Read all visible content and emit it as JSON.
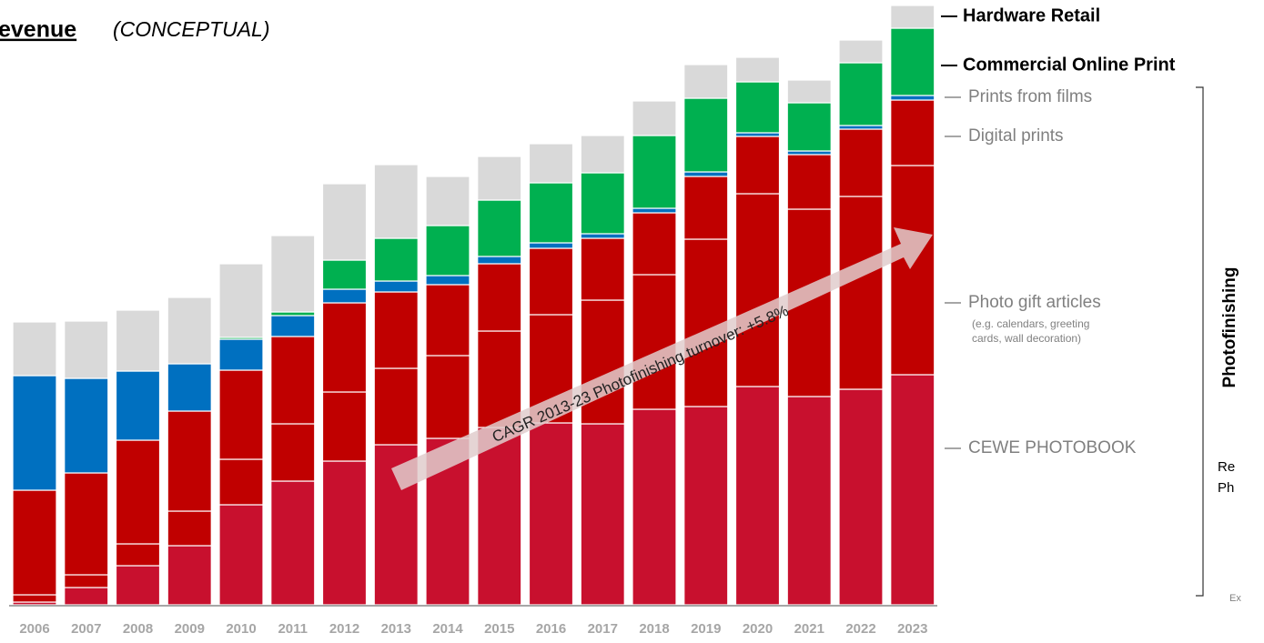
{
  "chart_data": {
    "type": "stacked_bar",
    "title": "evenue",
    "subtitle": "(CONCEPTUAL)",
    "categories": [
      "2006",
      "2007",
      "2008",
      "2009",
      "2010",
      "2011",
      "2012",
      "2013",
      "2014",
      "2015",
      "2016",
      "2017",
      "2018",
      "2019",
      "2020",
      "2021",
      "2022",
      "2023"
    ],
    "series": [
      {
        "name": "CEWE PHOTOBOOK",
        "color": "#c8102e",
        "values": [
          3,
          19,
          43,
          65,
          110,
          136,
          158,
          176,
          183,
          195,
          200,
          199,
          215,
          218,
          240,
          229,
          237,
          253
        ]
      },
      {
        "name": "Photo gift articles",
        "color": "#c00000",
        "values": [
          8,
          14,
          24,
          38,
          50,
          63,
          76,
          84,
          91,
          106,
          119,
          136,
          148,
          184,
          212,
          206,
          212,
          230
        ]
      },
      {
        "name": "Digital prints",
        "color": "#c00000",
        "values": [
          115,
          112,
          114,
          110,
          98,
          96,
          98,
          84,
          78,
          74,
          73,
          68,
          68,
          69,
          63,
          60,
          74,
          72
        ]
      },
      {
        "name": "Prints from films",
        "color": "#0070c0",
        "values": [
          126,
          104,
          76,
          52,
          34,
          23,
          15,
          12,
          10,
          8,
          6,
          5,
          5,
          5,
          4,
          4,
          4,
          5
        ]
      },
      {
        "name": "Commercial Online Print",
        "color": "#00b050",
        "values": [
          0,
          0,
          0,
          0,
          2,
          4,
          32,
          47,
          55,
          62,
          66,
          67,
          80,
          81,
          56,
          53,
          69,
          74
        ]
      },
      {
        "name": "Hardware Retail",
        "color": "#d9d9d9",
        "values": [
          59,
          63,
          67,
          73,
          81,
          84,
          84,
          81,
          54,
          48,
          43,
          41,
          38,
          37,
          27,
          25,
          25,
          25
        ]
      }
    ],
    "legend_note": [
      "(e.g. calendars, greeting",
      "cards, wall decoration)"
    ],
    "annotation": "CAGR 2013-23 Photofinishing turnover: +5.8%",
    "bracket_label": "Photofinishing",
    "side_texts": [
      "Re",
      "Ph",
      "Ex"
    ]
  }
}
